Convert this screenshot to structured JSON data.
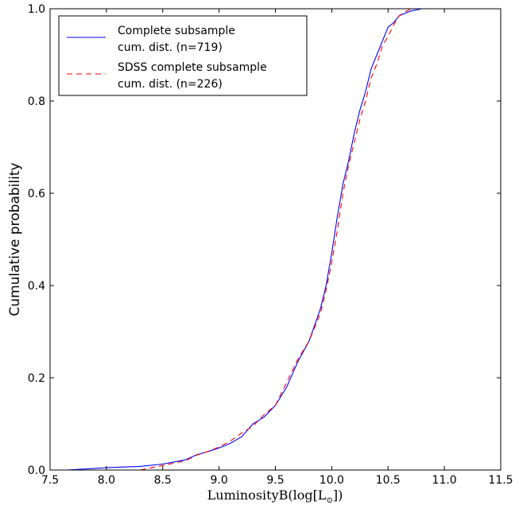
{
  "chart_data": {
    "type": "line",
    "title": "",
    "xlabel": "LuminosityB(log[L",
    "xlabel_sub": "⊙",
    "xlabel_end": "])",
    "ylabel": "Cumulative probability",
    "xlim": [
      7.5,
      11.5
    ],
    "ylim": [
      0.0,
      1.0
    ],
    "xticks": [
      "7.5",
      "8.0",
      "8.5",
      "9.0",
      "9.5",
      "10.0",
      "10.5",
      "11.0",
      "11.5"
    ],
    "yticks": [
      "0.0",
      "0.2",
      "0.4",
      "0.6",
      "0.8",
      "1.0"
    ],
    "grid": false,
    "legend_position": "top-left",
    "series": [
      {
        "name": "Complete subsample",
        "name_line2": "cum. dist. (n=719)",
        "color": "#0000ff",
        "style": "solid",
        "x": [
          7.65,
          8.0,
          8.3,
          8.5,
          8.7,
          8.8,
          8.9,
          9.0,
          9.1,
          9.2,
          9.3,
          9.4,
          9.5,
          9.6,
          9.7,
          9.8,
          9.9,
          9.95,
          10.0,
          10.05,
          10.1,
          10.15,
          10.2,
          10.25,
          10.3,
          10.35,
          10.4,
          10.45,
          10.5,
          10.55,
          10.6,
          10.7,
          10.8,
          10.9
        ],
        "y": [
          0.0,
          0.005,
          0.008,
          0.013,
          0.022,
          0.033,
          0.04,
          0.048,
          0.058,
          0.072,
          0.1,
          0.115,
          0.14,
          0.18,
          0.235,
          0.28,
          0.35,
          0.4,
          0.47,
          0.55,
          0.62,
          0.67,
          0.73,
          0.78,
          0.82,
          0.87,
          0.9,
          0.93,
          0.96,
          0.97,
          0.985,
          0.995,
          1.0,
          1.0
        ]
      },
      {
        "name": "SDSS complete subsample",
        "name_line2": "cum. dist. (n=226)",
        "color": "#ff0000",
        "style": "dashed",
        "x": [
          8.3,
          8.5,
          8.7,
          8.8,
          8.9,
          9.0,
          9.1,
          9.2,
          9.3,
          9.4,
          9.5,
          9.6,
          9.7,
          9.8,
          9.9,
          9.95,
          10.0,
          10.05,
          10.1,
          10.15,
          10.2,
          10.25,
          10.3,
          10.35,
          10.4,
          10.45,
          10.5,
          10.55,
          10.6,
          10.7,
          10.8
        ],
        "y": [
          0.0,
          0.01,
          0.02,
          0.032,
          0.04,
          0.05,
          0.063,
          0.08,
          0.095,
          0.12,
          0.14,
          0.19,
          0.24,
          0.28,
          0.34,
          0.39,
          0.45,
          0.52,
          0.6,
          0.66,
          0.71,
          0.76,
          0.8,
          0.85,
          0.88,
          0.92,
          0.94,
          0.965,
          0.985,
          1.0,
          1.0
        ]
      }
    ]
  }
}
